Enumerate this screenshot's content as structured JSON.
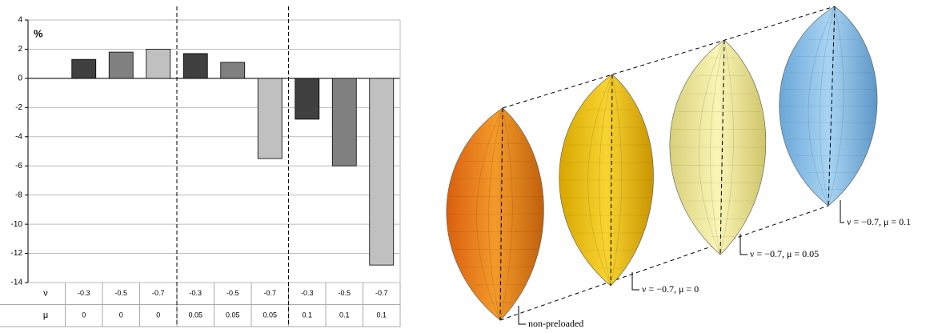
{
  "chart_data": {
    "type": "bar",
    "y_label": "%",
    "row_labels": [
      "ν",
      "μ"
    ],
    "categories": [
      [
        "-0.3",
        "0"
      ],
      [
        "-0.5",
        "0"
      ],
      [
        "-0.7",
        "0"
      ],
      [
        "-0.3",
        "0.05"
      ],
      [
        "-0.5",
        "0.05"
      ],
      [
        "-0.7",
        "0.05"
      ],
      [
        "-0.3",
        "0.1"
      ],
      [
        "-0.5",
        "0.1"
      ],
      [
        "-0.7",
        "0.1"
      ]
    ],
    "values": [
      1.3,
      1.8,
      2.0,
      1.7,
      1.1,
      -5.5,
      -2.8,
      -6.0,
      -12.8
    ],
    "colors": [
      "#404040",
      "#808080",
      "#c0c0c0",
      "#404040",
      "#808080",
      "#c0c0c0",
      "#404040",
      "#808080",
      "#c0c0c0"
    ],
    "ylim": [
      -14,
      4
    ],
    "yticks": [
      -14,
      -12,
      -10,
      -8,
      -6,
      -4,
      -2,
      0,
      2,
      4
    ],
    "grid": true
  },
  "figure": {
    "labels": [
      "non-preloaded",
      "ν = −0.7, μ = 0",
      "ν = −0.7, μ = 0.05",
      "ν = −0.7, μ = 0.1"
    ]
  }
}
